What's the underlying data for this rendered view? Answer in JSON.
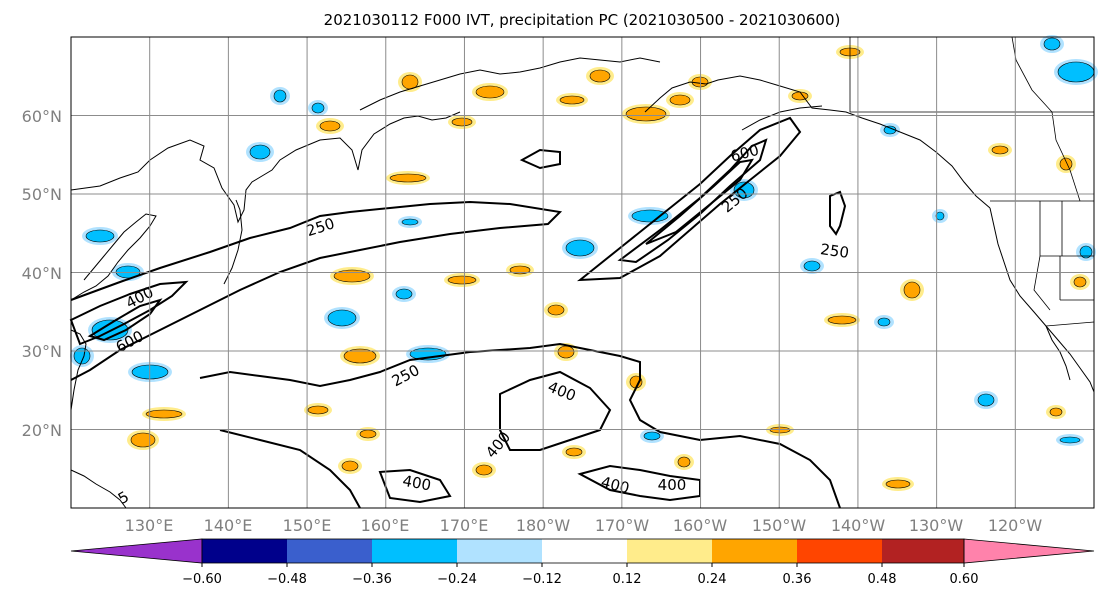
{
  "figure": {
    "title": "2021030112 F000 IVT, precipitation PC (2021030500 - 2021030600)"
  },
  "map": {
    "projection": "PlateCarree",
    "extent_lon": [
      120,
      250
    ],
    "extent_lat": [
      10,
      70
    ],
    "lon_tick_labels": [
      "130°E",
      "140°E",
      "150°E",
      "160°E",
      "170°E",
      "180°W",
      "170°W",
      "160°W",
      "150°W",
      "140°W",
      "130°W",
      "120°W"
    ],
    "lat_tick_labels": [
      "20°N",
      "30°N",
      "40°N",
      "50°N",
      "60°N"
    ],
    "ivt_contour_labels": [
      "250",
      "250",
      "250",
      "400",
      "600",
      "600",
      "250",
      "400",
      "400",
      "400",
      "400",
      "400",
      "5"
    ],
    "grid": true
  },
  "colorbar": {
    "ticks": [
      "−0.60",
      "−0.48",
      "−0.36",
      "−0.24",
      "−0.12",
      "0.12",
      "0.24",
      "0.36",
      "0.48",
      "0.60"
    ],
    "colors": [
      "#9932cc",
      "#00008b",
      "#3a5fcd",
      "#00bfff",
      "#b0e2ff",
      "#ffffff",
      "#ffec8b",
      "#ffa500",
      "#ff4500",
      "#b22222",
      "#ff82ab"
    ],
    "extend": "both"
  }
}
